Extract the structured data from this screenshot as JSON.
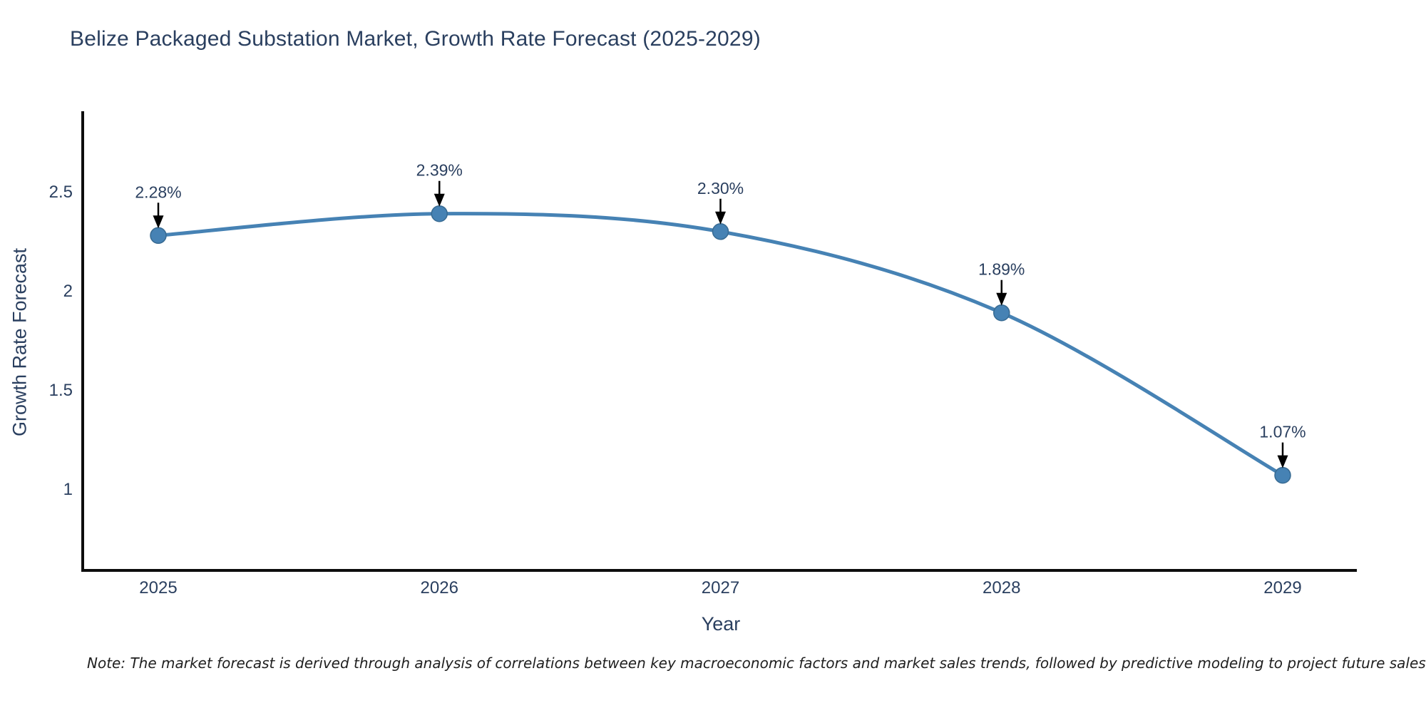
{
  "chart_data": {
    "type": "line",
    "title": "Belize Packaged Substation Market, Growth Rate Forecast (2025-2029)",
    "xlabel": "Year",
    "ylabel": "Growth Rate Forecast",
    "x": [
      "2025",
      "2026",
      "2027",
      "2028",
      "2029"
    ],
    "series": [
      {
        "name": "Growth Rate Forecast",
        "values": [
          2.28,
          2.39,
          2.3,
          1.89,
          1.07
        ]
      }
    ],
    "point_labels": [
      "2.28%",
      "2.39%",
      "2.30%",
      "1.89%",
      "1.07%"
    ],
    "yticks": [
      2.5,
      2,
      1.5,
      1
    ],
    "ylim": [
      0.59,
      2.9
    ],
    "grid": false,
    "legend": false,
    "line_shape": "spline",
    "colors": {
      "line": "#4682b4",
      "marker": "#4682b4",
      "marker_edge": "#376a92",
      "text": "#2a3f5f",
      "axis": "#0d0d0d",
      "annotation_text": "#2a3f5f",
      "annotation_arrow": "#000000",
      "note_text": "#1f1f1f",
      "background": "#ffffff"
    }
  },
  "note": "Note: The market forecast is derived through analysis of correlations between key macroeconomic factors and market sales trends, followed by predictive modeling to project future sales"
}
